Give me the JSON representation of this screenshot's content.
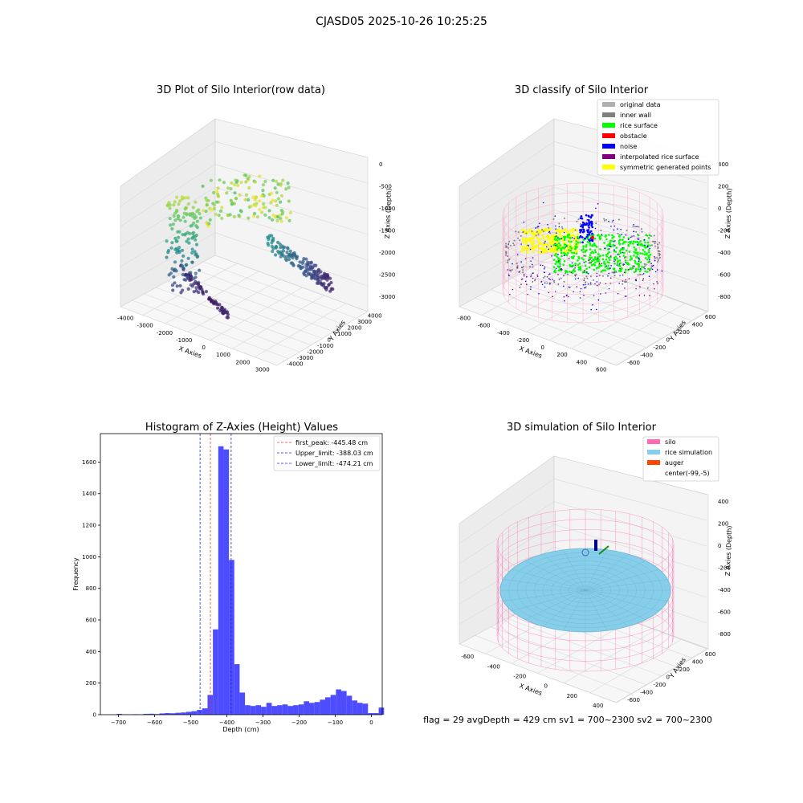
{
  "suptitle": "CJASD05 2025-10-26 10:25:25",
  "footer": "flag = 29  avgDepth = 429 cm  sv1 = 700~2300  sv2 = 700~2300",
  "colors": {
    "hist_bar": "#4d4dff",
    "peak_line": "#ff3333",
    "limit_line": "#2222ff",
    "silo": "#ff69b4",
    "rice_sim": "#87ceeb",
    "auger": "#ff4500",
    "grid_pane": "#f2f2f2"
  },
  "chart_data": [
    {
      "type": "scatter",
      "title": "3D Plot of Silo Interior(row data)",
      "xlabel": "X Axies",
      "ylabel": "Y Axies",
      "zlabel": "Z Axies (Depth)",
      "xlim": [
        -4500,
        3000
      ],
      "ylim": [
        -4000,
        4000
      ],
      "zlim": [
        -3000,
        0
      ],
      "xticks": [
        "-4000",
        "-3000",
        "-2000",
        "-1000",
        "0",
        "1000",
        "2000",
        "3000"
      ],
      "yticks": [
        "-4000",
        "-3000",
        "-2000",
        "-1000",
        "0",
        "1000",
        "2000",
        "3000",
        "4000"
      ],
      "zticks": [
        "0",
        "-500",
        "-1000",
        "-1500",
        "-2000",
        "-2500",
        "-3000"
      ],
      "colormap": "viridis"
    },
    {
      "type": "scatter",
      "title": "3D classify of Silo Interior",
      "xlabel": "X Axies",
      "ylabel": "Y Axies",
      "zlabel": "Z Axies (Depth)",
      "xlim": [
        -800,
        600
      ],
      "ylim": [
        -600,
        600
      ],
      "zlim": [
        -900,
        400
      ],
      "xticks": [
        "-800",
        "-600",
        "-400",
        "-200",
        "0",
        "200",
        "400",
        "600"
      ],
      "yticks": [
        "-600",
        "-400",
        "-200",
        "0",
        "200",
        "400",
        "600"
      ],
      "zticks": [
        "400",
        "200",
        "0",
        "-200",
        "-400",
        "-600",
        "-800"
      ],
      "legend": [
        {
          "label": "original data",
          "color": "#b0b0b0"
        },
        {
          "label": "inner wall",
          "color": "#808080"
        },
        {
          "label": "rice surface",
          "color": "#00ff00"
        },
        {
          "label": "obstacle",
          "color": "#ff0000"
        },
        {
          "label": "noise",
          "color": "#0000ff"
        },
        {
          "label": "interpolated rice surface",
          "color": "#800080"
        },
        {
          "label": "symmetric generated points",
          "color": "#ffff00"
        }
      ],
      "legend_position": "top-right"
    },
    {
      "type": "bar",
      "title": "Histogram of Z-Axies (Height) Values",
      "xlabel": "Depth (cm)",
      "ylabel": "Frequency",
      "xlim": [
        -750,
        30
      ],
      "ylim": [
        0,
        1780
      ],
      "xticks": [
        -700,
        -600,
        -500,
        -400,
        -300,
        -200,
        -100,
        0
      ],
      "yticks": [
        0,
        200,
        400,
        600,
        800,
        1000,
        1200,
        1400,
        1600
      ],
      "bin_start": -705,
      "bin_width": 14.8,
      "values": [
        5,
        2,
        1,
        3,
        2,
        5,
        6,
        4,
        8,
        10,
        9,
        12,
        14,
        18,
        22,
        30,
        40,
        125,
        540,
        1700,
        1680,
        980,
        320,
        140,
        60,
        55,
        60,
        50,
        75,
        55,
        60,
        65,
        55,
        60,
        65,
        85,
        75,
        80,
        95,
        110,
        125,
        160,
        150,
        120,
        90,
        75,
        70,
        10,
        10,
        45
      ],
      "vlines": [
        {
          "label": "first_peak: -445.48 cm",
          "x": -445.48,
          "kind": "peak"
        },
        {
          "label": "Upper_limit: -388.03 cm",
          "x": -388.03,
          "kind": "limit"
        },
        {
          "label": "Lower_limit: -474.21 cm",
          "x": -474.21,
          "kind": "limit"
        }
      ],
      "legend_position": "top-right"
    },
    {
      "type": "scatter",
      "title": "3D simulation of Silo Interior",
      "xlabel": "X Axies",
      "ylabel": "Y Axies",
      "zlabel": "Z Axies (Depth)",
      "xlim": [
        -700,
        500
      ],
      "ylim": [
        -600,
        600
      ],
      "zlim": [
        -900,
        400
      ],
      "xticks": [
        "-600",
        "-400",
        "-200",
        "0",
        "200",
        "400"
      ],
      "yticks": [
        "-600",
        "-400",
        "-200",
        "0",
        "200",
        "400",
        "600"
      ],
      "zticks": [
        "400",
        "200",
        "0",
        "-200",
        "-400",
        "-600",
        "-800"
      ],
      "legend": [
        {
          "label": "silo",
          "color": "#ff69b4"
        },
        {
          "label": "rice simulation",
          "color": "#87ceeb"
        },
        {
          "label": "auger",
          "color": "#ff4500"
        },
        {
          "label": "center(-99,-5)",
          "color": ""
        }
      ],
      "legend_position": "top-right"
    }
  ]
}
